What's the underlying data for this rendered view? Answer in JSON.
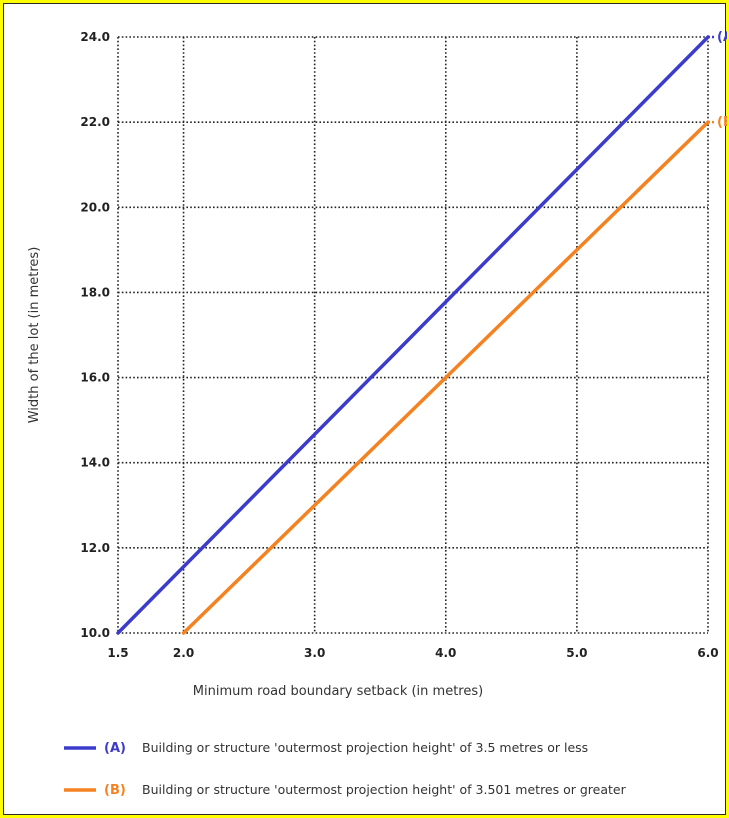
{
  "chart_data": {
    "type": "line",
    "xlabel": "Minimum road boundary setback (in metres)",
    "ylabel": "Width of the lot (in metres)",
    "xlim": [
      1.5,
      6.0
    ],
    "ylim": [
      10.0,
      24.0
    ],
    "x_ticks": [
      "1.5",
      "2.0",
      "3.0",
      "4.0",
      "5.0",
      "6.0"
    ],
    "y_ticks": [
      "10.0",
      "12.0",
      "14.0",
      "16.0",
      "18.0",
      "20.0",
      "22.0",
      "24.0"
    ],
    "grid": true,
    "grid_style": "dotted",
    "series": [
      {
        "name": "(A)",
        "description": "Building or structure 'outermost projection height' of 3.5 metres or less",
        "color": "#3b3bcc",
        "x": [
          1.5,
          6.0
        ],
        "y": [
          10.0,
          24.0
        ]
      },
      {
        "name": "(B)",
        "description": "Building or structure 'outermost projection height' of 3.501 metres or greater",
        "color": "#f58220",
        "x": [
          2.0,
          6.0
        ],
        "y": [
          10.0,
          22.0
        ]
      }
    ]
  }
}
